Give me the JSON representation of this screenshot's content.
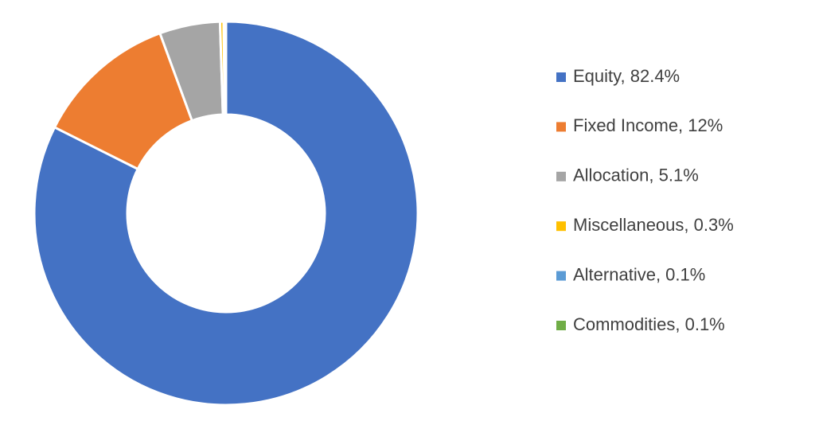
{
  "chart_data": {
    "type": "donut",
    "categories": [
      "Equity, 82.4%",
      "Fixed Income, 12%",
      "Allocation, 5.1%",
      "Miscellaneous, 0.3%",
      "Alternative, 0.1%",
      "Commodities, 0.1%"
    ],
    "values": [
      82.4,
      12,
      5.1,
      0.3,
      0.1,
      0.1
    ],
    "colors": [
      "#4472c4",
      "#ed7d31",
      "#a5a5a5",
      "#ffc000",
      "#5b9bd5",
      "#70ad47"
    ],
    "legend": "right"
  }
}
